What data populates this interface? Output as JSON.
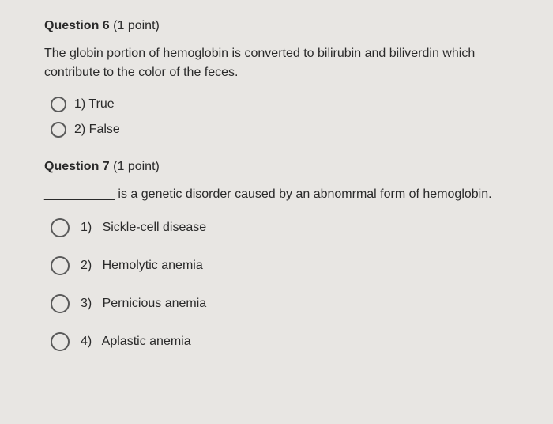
{
  "q6": {
    "number": "Question 6",
    "points": "(1 point)",
    "text": "The globin portion of hemoglobin is converted to bilirubin and biliverdin which contribute to the color of the feces.",
    "options": [
      {
        "label": "1) True"
      },
      {
        "label": "2) False"
      }
    ]
  },
  "q7": {
    "number": "Question 7",
    "points": "(1 point)",
    "blank": "__________",
    "text_after": " is a genetic disorder caused by an abnomrmal form of hemoglobin.",
    "options": [
      {
        "label": "1)   Sickle-cell disease"
      },
      {
        "label": "2)   Hemolytic anemia"
      },
      {
        "label": "3)   Pernicious anemia"
      },
      {
        "label": "4)   Aplastic anemia"
      }
    ]
  },
  "colors": {
    "background": "#e8e6e3",
    "text": "#2a2a2a",
    "radio_border": "#5a5a5a"
  }
}
